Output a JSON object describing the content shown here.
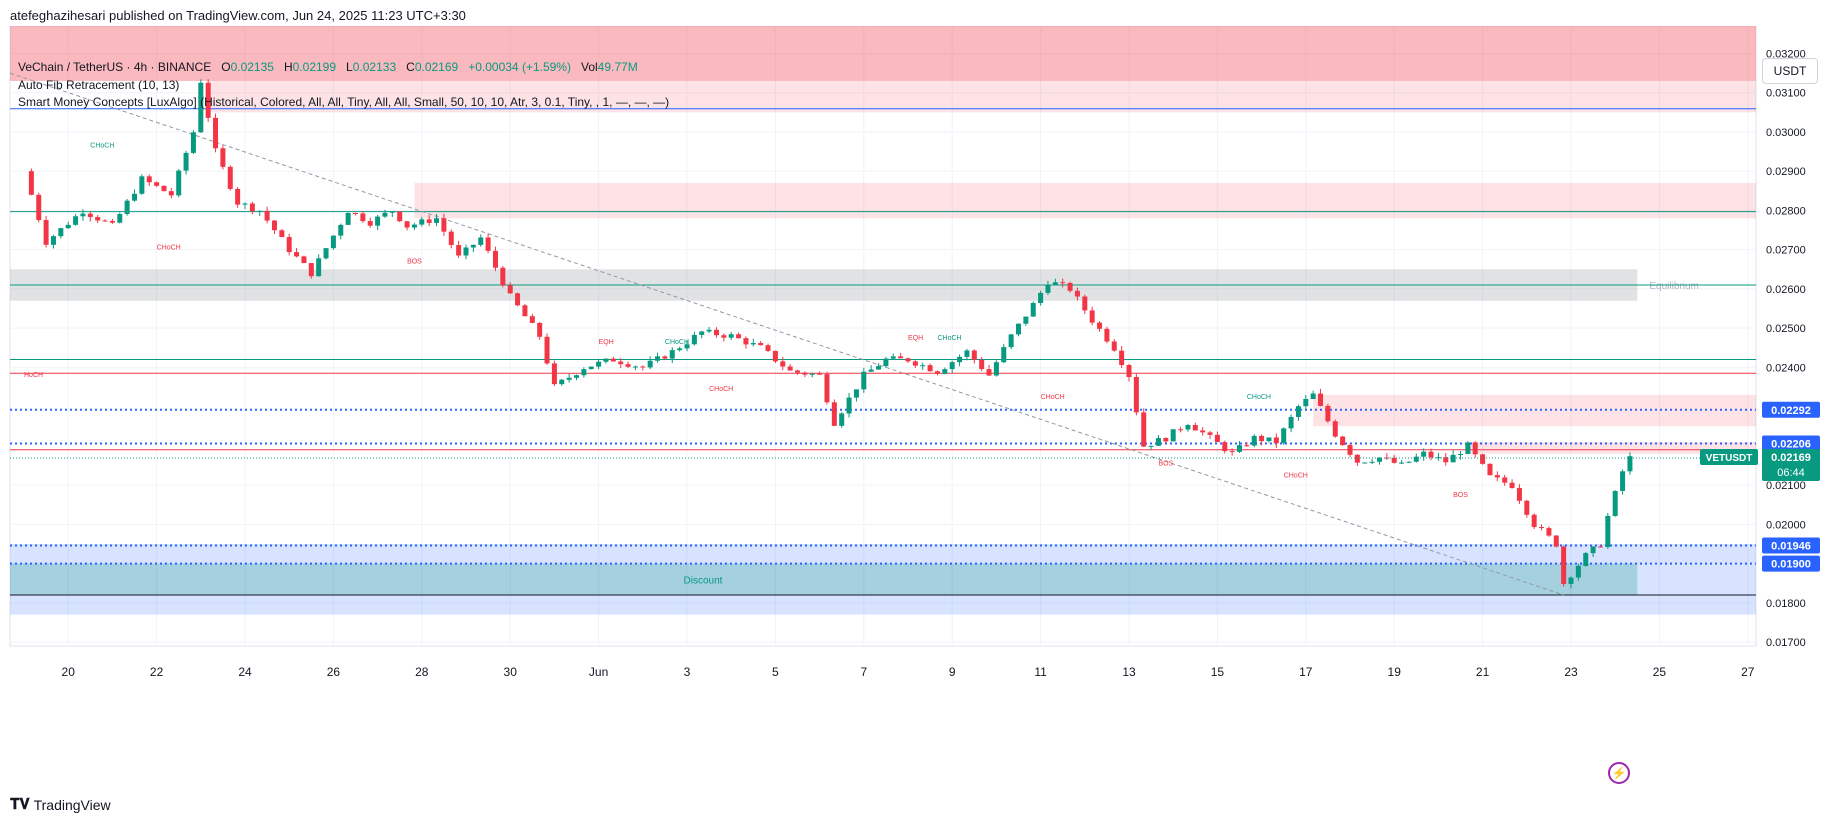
{
  "header": {
    "published_by": "atefeghazihesari published on TradingView.com, Jun 24, 2025 11:23 UTC+3:30"
  },
  "legend": {
    "symbol": "VeChain / TetherUS · 4h · BINANCE",
    "o_label": "O",
    "o_value": "0.02135",
    "h_label": "H",
    "h_value": "0.02199",
    "l_label": "L",
    "l_value": "0.02133",
    "c_label": "C",
    "c_value": "0.02169",
    "change": "+0.00034 (+1.59%)",
    "vol_label": "Vol",
    "vol_value": "49.77M",
    "indicator1": "Auto Fib Retracement (10, 13)",
    "indicator2": "Smart Money Concepts [LuxAlgo] (Historical, Colored, All, All, Tiny, All, All, Small, 50, 10, 10, Atr, 3, 0.1, Tiny, , 1, —, —, —)"
  },
  "currency": "USDT",
  "footer": {
    "brand": "TradingView"
  },
  "colors": {
    "up": "#089981",
    "down": "#f23645",
    "blue_line": "#2962ff",
    "grid": "#f0f3fa"
  },
  "chart_data": {
    "type": "candlestick",
    "symbol": "VETUSDT",
    "timeframe": "4h",
    "x_ticks": [
      "20",
      "22",
      "24",
      "26",
      "28",
      "30",
      "Jun",
      "3",
      "5",
      "7",
      "9",
      "11",
      "13",
      "15",
      "17",
      "19",
      "21",
      "23",
      "25",
      "27"
    ],
    "y_ticks": [
      "0.03200",
      "0.03100",
      "0.03000",
      "0.02900",
      "0.02800",
      "0.02700",
      "0.02600",
      "0.02500",
      "0.02400",
      "0.02100",
      "0.02000",
      "0.01800",
      "0.01700"
    ],
    "ylim": [
      0.0169,
      0.0327
    ],
    "price_labels": [
      {
        "value": "0.02292",
        "bg": "#2962ff"
      },
      {
        "value": "0.02206",
        "bg": "#2962ff"
      },
      {
        "value": "0.01946",
        "bg": "#2962ff"
      },
      {
        "value": "0.01900",
        "bg": "#2962ff"
      }
    ],
    "last_price": {
      "symbol": "VETUSDT",
      "value": "0.02169",
      "countdown": "06:44"
    },
    "zones": [
      {
        "label": "",
        "from": 0.0313,
        "to": 0.033,
        "color": "#f23645",
        "opacity": 0.35
      },
      {
        "label": "",
        "from": 0.0305,
        "to": 0.0313,
        "color": "#f23645",
        "opacity": 0.14
      },
      {
        "label": "",
        "from": 0.0278,
        "to": 0.0287,
        "color": "#f23645",
        "opacity": 0.14
      },
      {
        "label": "Equilibrium",
        "from": 0.0257,
        "to": 0.0265,
        "color": "#787b86",
        "opacity": 0.22
      },
      {
        "label": "",
        "from": 0.0225,
        "to": 0.0233,
        "color": "#f23645",
        "opacity": 0.14
      },
      {
        "label": "",
        "from": 0.0218,
        "to": 0.0221,
        "color": "#f23645",
        "opacity": 0.14
      },
      {
        "label": "Discount",
        "from": 0.0177,
        "to": 0.0195,
        "color": "#2962ff",
        "opacity": 0.18
      },
      {
        "label": "",
        "from": 0.0182,
        "to": 0.019,
        "color": "#089981",
        "opacity": 0.25
      }
    ],
    "structure_labels": [
      {
        "text": "CHoCH",
        "color": "#089981"
      },
      {
        "text": "CHoCH",
        "color": "#f23645"
      },
      {
        "text": "BOS",
        "color": "#f23645"
      },
      {
        "text": "HoCH",
        "color": "#f23645"
      },
      {
        "text": "EQH",
        "color": "#f23645"
      },
      {
        "text": "CHoCH",
        "color": "#089981"
      },
      {
        "text": "CHoCH",
        "color": "#f23645"
      },
      {
        "text": "EQH",
        "color": "#f23645"
      },
      {
        "text": "CHoCH",
        "color": "#089981"
      },
      {
        "text": "CHoCH",
        "color": "#f23645"
      },
      {
        "text": "CHoCH",
        "color": "#089981"
      },
      {
        "text": "BOS",
        "color": "#f23645"
      },
      {
        "text": "CHoCH",
        "color": "#f23645"
      },
      {
        "text": "BOS",
        "color": "#f23645"
      }
    ],
    "horizontal_lines": [
      {
        "value": 0.03059,
        "color": "#2962ff",
        "style": "solid"
      },
      {
        "value": 0.02797,
        "color": "#089981",
        "style": "solid"
      },
      {
        "value": 0.0261,
        "color": "#089981",
        "style": "solid"
      },
      {
        "value": 0.0242,
        "color": "#089981",
        "style": "solid"
      },
      {
        "value": 0.02385,
        "color": "#f23645",
        "style": "solid"
      },
      {
        "value": 0.02292,
        "color": "#2962ff",
        "style": "dotted"
      },
      {
        "value": 0.02206,
        "color": "#2962ff",
        "style": "dotted"
      },
      {
        "value": 0.0219,
        "color": "#f23645",
        "style": "solid"
      },
      {
        "value": 0.01946,
        "color": "#2962ff",
        "style": "dotted"
      },
      {
        "value": 0.019,
        "color": "#2962ff",
        "style": "dotted"
      },
      {
        "value": 0.0182,
        "color": "#131722",
        "style": "solid"
      }
    ],
    "candle_anchors": [
      [
        "May 19 00:00",
        0.029
      ],
      [
        "May 19 12:00",
        0.0272
      ],
      [
        "May 20 08:00",
        0.028
      ],
      [
        "May 21 00:00",
        0.0276
      ],
      [
        "May 21 16:00",
        0.0288
      ],
      [
        "May 22 08:00",
        0.0284
      ],
      [
        "May 22 20:00",
        0.03
      ],
      [
        "May 23 00:00",
        0.0313
      ],
      [
        "May 23 08:00",
        0.0295
      ],
      [
        "May 23 20:00",
        0.0282
      ],
      [
        "May 24 08:00",
        0.028
      ],
      [
        "May 25 00:00",
        0.027
      ],
      [
        "May 25 12:00",
        0.0264
      ],
      [
        "May 26 08:00",
        0.028
      ],
      [
        "May 26 20:00",
        0.0277
      ],
      [
        "May 27 08:00",
        0.028
      ],
      [
        "May 27 16:00",
        0.0276
      ],
      [
        "May 28 08:00",
        0.0278
      ],
      [
        "May 28 20:00",
        0.0268
      ],
      [
        "May 29 08:00",
        0.0273
      ],
      [
        "May 30 00:00",
        0.0258
      ],
      [
        "May 30 16:00",
        0.0248
      ],
      [
        "May 31 00:00",
        0.0235
      ],
      [
        "May 31 16:00",
        0.024
      ],
      [
        "Jun 1 08:00",
        0.0242
      ],
      [
        "Jun 2 00:00",
        0.024
      ],
      [
        "Jun 2 16:00",
        0.0244
      ],
      [
        "Jun 3 08:00",
        0.0249
      ],
      [
        "Jun 4 00:00",
        0.0248
      ],
      [
        "Jun 4 16:00",
        0.0245
      ],
      [
        "Jun 5 08:00",
        0.0239
      ],
      [
        "Jun 6 00:00",
        0.0238
      ],
      [
        "Jun 6 08:00",
        0.0226
      ],
      [
        "Jun 7 00:00",
        0.0238
      ],
      [
        "Jun 7 12:00",
        0.0242
      ],
      [
        "Jun 8 00:00",
        0.0242
      ],
      [
        "Jun 8 16:00",
        0.0239
      ],
      [
        "Jun 9 08:00",
        0.0244
      ],
      [
        "Jun 9 20:00",
        0.0238
      ],
      [
        "Jun 10 08:00",
        0.0248
      ],
      [
        "Jun 10 20:00",
        0.0256
      ],
      [
        "Jun 11 04:00",
        0.0262
      ],
      [
        "Jun 11 16:00",
        0.026
      ],
      [
        "Jun 12 04:00",
        0.0252
      ],
      [
        "Jun 12 16:00",
        0.0245
      ],
      [
        "Jun 13 00:00",
        0.0238
      ],
      [
        "Jun 13 08:00",
        0.022
      ],
      [
        "Jun 13 20:00",
        0.0222
      ],
      [
        "Jun 14 08:00",
        0.0226
      ],
      [
        "Jun 14 20:00",
        0.0222
      ],
      [
        "Jun 15 08:00",
        0.0218
      ],
      [
        "Jun 15 20:00",
        0.0222
      ],
      [
        "Jun 16 08:00",
        0.0221
      ],
      [
        "Jun 16 20:00",
        0.023
      ],
      [
        "Jun 17 04:00",
        0.0233
      ],
      [
        "Jun 17 16:00",
        0.0223
      ],
      [
        "Jun 18 04:00",
        0.0216
      ],
      [
        "Jun 18 16:00",
        0.0217
      ],
      [
        "Jun 19 04:00",
        0.0215
      ],
      [
        "Jun 19 16:00",
        0.0218
      ],
      [
        "Jun 20 04:00",
        0.0216
      ],
      [
        "Jun 20 16:00",
        0.022
      ],
      [
        "Jun 21 04:00",
        0.0212
      ],
      [
        "Jun 21 16:00",
        0.021
      ],
      [
        "Jun 22 04:00",
        0.02
      ],
      [
        "Jun 22 16:00",
        0.0195
      ],
      [
        "Jun 22 20:00",
        0.0185
      ],
      [
        "Jun 23 08:00",
        0.0192
      ],
      [
        "Jun 23 16:00",
        0.0195
      ],
      [
        "Jun 23 20:00",
        0.0202
      ],
      [
        "Jun 24 04:00",
        0.02135
      ],
      [
        "Jun 24 08:00",
        0.02169
      ]
    ]
  }
}
